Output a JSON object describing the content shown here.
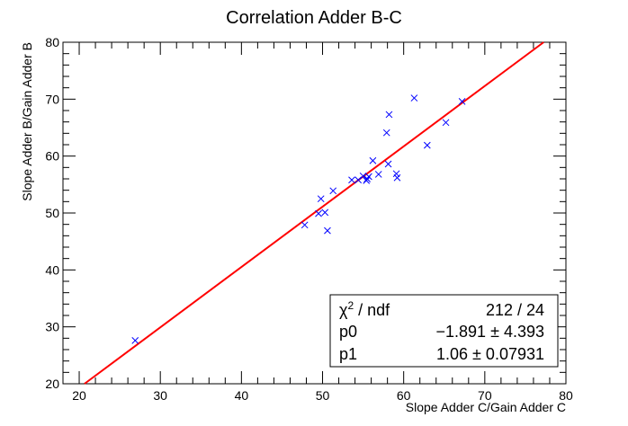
{
  "chart_data": {
    "type": "scatter",
    "title": "Correlation Adder B-C",
    "xlabel": "Slope Adder C/Gain Adder C",
    "ylabel": "Slope Adder B/Gain Adder B",
    "xlim": [
      18,
      80
    ],
    "ylim": [
      20,
      80
    ],
    "x_ticks": [
      20,
      30,
      40,
      50,
      60,
      70,
      80
    ],
    "y_ticks": [
      20,
      30,
      40,
      50,
      60,
      70,
      80
    ],
    "grid": false,
    "marker": "x",
    "point_color": "#0000ff",
    "fit_color": "#ff0000",
    "points": [
      {
        "x": 26.9,
        "y": 27.6
      },
      {
        "x": 47.8,
        "y": 47.9
      },
      {
        "x": 49.5,
        "y": 49.9
      },
      {
        "x": 49.8,
        "y": 52.5
      },
      {
        "x": 50.3,
        "y": 50.1
      },
      {
        "x": 50.6,
        "y": 46.9
      },
      {
        "x": 51.3,
        "y": 53.9
      },
      {
        "x": 53.6,
        "y": 55.8
      },
      {
        "x": 54.4,
        "y": 55.8
      },
      {
        "x": 55.0,
        "y": 56.5
      },
      {
        "x": 55.4,
        "y": 55.7
      },
      {
        "x": 55.7,
        "y": 56.4
      },
      {
        "x": 55.5,
        "y": 56.0
      },
      {
        "x": 56.2,
        "y": 59.2
      },
      {
        "x": 56.9,
        "y": 56.8
      },
      {
        "x": 57.9,
        "y": 64.1
      },
      {
        "x": 58.1,
        "y": 58.6
      },
      {
        "x": 58.2,
        "y": 67.3
      },
      {
        "x": 59.1,
        "y": 56.9
      },
      {
        "x": 59.2,
        "y": 56.2
      },
      {
        "x": 61.3,
        "y": 70.2
      },
      {
        "x": 62.9,
        "y": 61.9
      },
      {
        "x": 65.2,
        "y": 65.9
      },
      {
        "x": 67.2,
        "y": 69.6
      }
    ],
    "fit": {
      "p0": -1.891,
      "p1": 1.06
    },
    "stats": {
      "chi2_label": "χ",
      "chi2_sup": "2",
      "chi2_suffix": " / ndf",
      "chi2_value": "212 / 24",
      "p0_label": "p0",
      "p0_value": "−1.891 ± 4.393",
      "p1_label": "p1",
      "p1_value": "1.06 ± 0.07931"
    }
  }
}
